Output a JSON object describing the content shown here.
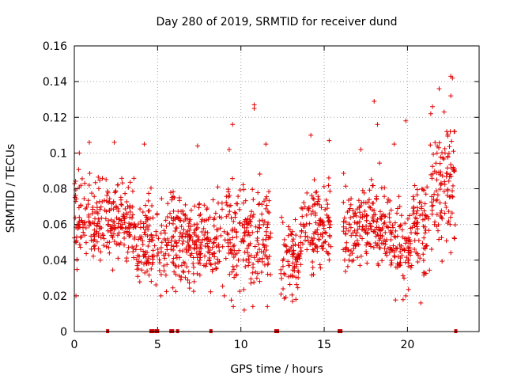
{
  "chart_data": {
    "type": "scatter",
    "title": "Day 280 of 2019, SRMTID for receiver dund",
    "xlabel": "GPS time / hours",
    "ylabel": "SRMTID / TECUs",
    "xlim": [
      0,
      24.3
    ],
    "ylim": [
      0,
      0.16
    ],
    "grid": true,
    "x_ticks": [
      0,
      5,
      10,
      15,
      20
    ],
    "x_tick_labels": [
      "0",
      "5",
      "10",
      "15",
      "20"
    ],
    "y_ticks": [
      0,
      0.02,
      0.04,
      0.06,
      0.08,
      0.1,
      0.12,
      0.14,
      0.16
    ],
    "y_tick_labels": [
      "0",
      "0.02",
      "0.04",
      "0.06",
      "0.08",
      "0.1",
      "0.12",
      "0.14",
      "0.16"
    ],
    "marker": "+",
    "color": "#e00000",
    "series": [
      {
        "name": "SRMTID",
        "segments": [
          {
            "start": 0.0,
            "end": 3.6,
            "mean": 0.062,
            "spread": 0.016
          },
          {
            "start": 3.6,
            "end": 5.0,
            "mean": 0.05,
            "spread": 0.015
          },
          {
            "start": 5.0,
            "end": 9.0,
            "mean": 0.05,
            "spread": 0.016
          },
          {
            "start": 9.0,
            "end": 11.8,
            "mean": 0.052,
            "spread": 0.02
          },
          {
            "start": 12.4,
            "end": 13.6,
            "mean": 0.042,
            "spread": 0.014
          },
          {
            "start": 13.6,
            "end": 15.4,
            "mean": 0.058,
            "spread": 0.015
          },
          {
            "start": 16.1,
            "end": 18.0,
            "mean": 0.06,
            "spread": 0.015
          },
          {
            "start": 18.0,
            "end": 19.0,
            "mean": 0.06,
            "spread": 0.016
          },
          {
            "start": 19.0,
            "end": 20.2,
            "mean": 0.048,
            "spread": 0.016
          },
          {
            "start": 20.2,
            "end": 21.3,
            "mean": 0.058,
            "spread": 0.018
          },
          {
            "start": 21.3,
            "end": 22.9,
            "mean": 0.08,
            "spread": 0.022
          }
        ],
        "points_per_segment_hour": 70,
        "highlights": [
          {
            "x": 0.3,
            "y": 0.1
          },
          {
            "x": 0.9,
            "y": 0.106
          },
          {
            "x": 2.4,
            "y": 0.106
          },
          {
            "x": 4.2,
            "y": 0.105
          },
          {
            "x": 7.4,
            "y": 0.104
          },
          {
            "x": 9.3,
            "y": 0.102
          },
          {
            "x": 9.5,
            "y": 0.116
          },
          {
            "x": 10.8,
            "y": 0.125
          },
          {
            "x": 10.8,
            "y": 0.127
          },
          {
            "x": 11.5,
            "y": 0.105
          },
          {
            "x": 14.2,
            "y": 0.11
          },
          {
            "x": 15.3,
            "y": 0.107
          },
          {
            "x": 17.2,
            "y": 0.102
          },
          {
            "x": 18.0,
            "y": 0.129
          },
          {
            "x": 18.2,
            "y": 0.116
          },
          {
            "x": 19.2,
            "y": 0.105
          },
          {
            "x": 19.9,
            "y": 0.118
          },
          {
            "x": 21.4,
            "y": 0.122
          },
          {
            "x": 21.5,
            "y": 0.126
          },
          {
            "x": 21.9,
            "y": 0.136
          },
          {
            "x": 22.2,
            "y": 0.123
          },
          {
            "x": 22.6,
            "y": 0.132
          },
          {
            "x": 22.6,
            "y": 0.143
          },
          {
            "x": 22.7,
            "y": 0.142
          },
          {
            "x": 10.2,
            "y": 0.012
          },
          {
            "x": 13.1,
            "y": 0.017
          },
          {
            "x": 13.3,
            "y": 0.018
          },
          {
            "x": 20.8,
            "y": 0.016
          },
          {
            "x": 19.9,
            "y": 0.02
          },
          {
            "x": 0.1,
            "y": 0.02
          },
          {
            "x": 5.2,
            "y": 0.02
          },
          {
            "x": 9.0,
            "y": 0.02
          }
        ]
      },
      {
        "name": "zero",
        "x": [
          2.0,
          4.6,
          4.7,
          4.9,
          5.0,
          5.8,
          5.9,
          6.2,
          8.2,
          12.1,
          12.2,
          15.9,
          16.0,
          22.9
        ],
        "y": [
          0,
          0,
          0,
          0,
          0,
          0,
          0,
          0,
          0,
          0,
          0,
          0,
          0,
          0
        ]
      }
    ]
  }
}
